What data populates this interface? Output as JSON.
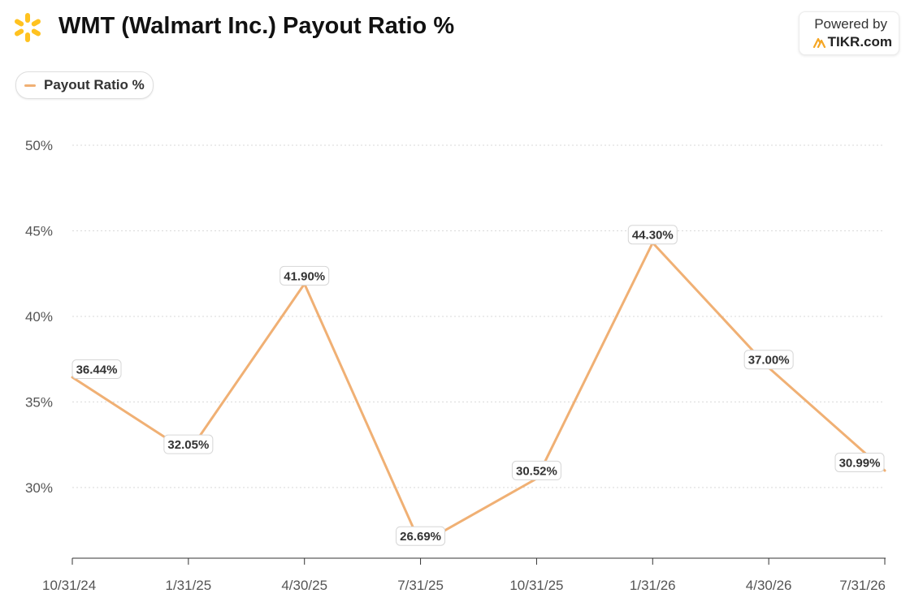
{
  "header": {
    "title": "WMT (Walmart Inc.) Payout Ratio %",
    "powered_by": "Powered by",
    "brand": "TIKR.com",
    "logo_icon": "walmart-spark-icon",
    "brand_icon": "tikr-icon"
  },
  "colors": {
    "line": "#F0B074",
    "logo": "#FFC220",
    "grid": "#d9d9d9",
    "axis_text": "#555555"
  },
  "chart_data": {
    "type": "line",
    "title": "WMT (Walmart Inc.) Payout Ratio %",
    "categories": [
      "10/31/24",
      "1/31/25",
      "4/30/25",
      "7/31/25",
      "10/31/25",
      "1/31/26",
      "4/30/26",
      "7/31/26"
    ],
    "series": [
      {
        "name": "Payout Ratio %",
        "values": [
          36.44,
          32.05,
          41.9,
          26.69,
          30.52,
          44.3,
          37.0,
          30.99
        ],
        "labels": [
          "36.44%",
          "32.05%",
          "41.90%",
          "26.69%",
          "30.52%",
          "44.30%",
          "37.00%",
          "30.99%"
        ]
      }
    ],
    "yticks": [
      30,
      35,
      40,
      45,
      50
    ],
    "ytick_labels": [
      "30%",
      "35%",
      "40%",
      "45%",
      "50%"
    ],
    "ylim": [
      25.87,
      50
    ],
    "grid": true,
    "legend": "top-left"
  }
}
